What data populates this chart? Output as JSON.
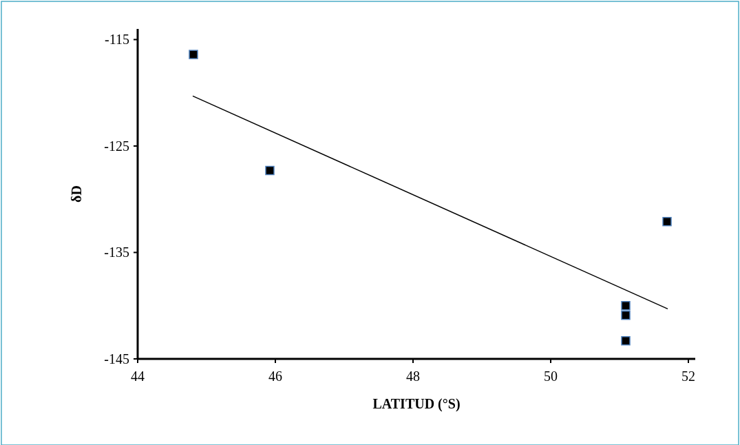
{
  "chart_data": {
    "type": "scatter",
    "xlabel": "LATITUD (°S)",
    "ylabel": "δD",
    "xlim": [
      44,
      52.1
    ],
    "ylim": [
      -145,
      -114
    ],
    "xticks": [
      44,
      46,
      48,
      50,
      52
    ],
    "yticks": [
      -145,
      -135,
      -125,
      -115
    ],
    "grid": false,
    "series": [
      {
        "color": "#000000",
        "marker": "square",
        "x": [
          44.81,
          45.92,
          51.69,
          51.09,
          51.09,
          51.09
        ],
        "values": [
          -116.4,
          -127.3,
          -132.1,
          -140.0,
          -140.9,
          -143.3
        ]
      },
      {
        "type": "line",
        "color": "#000000",
        "x": [
          44.8,
          51.7
        ],
        "values": [
          -120.3,
          -140.3
        ]
      }
    ]
  }
}
